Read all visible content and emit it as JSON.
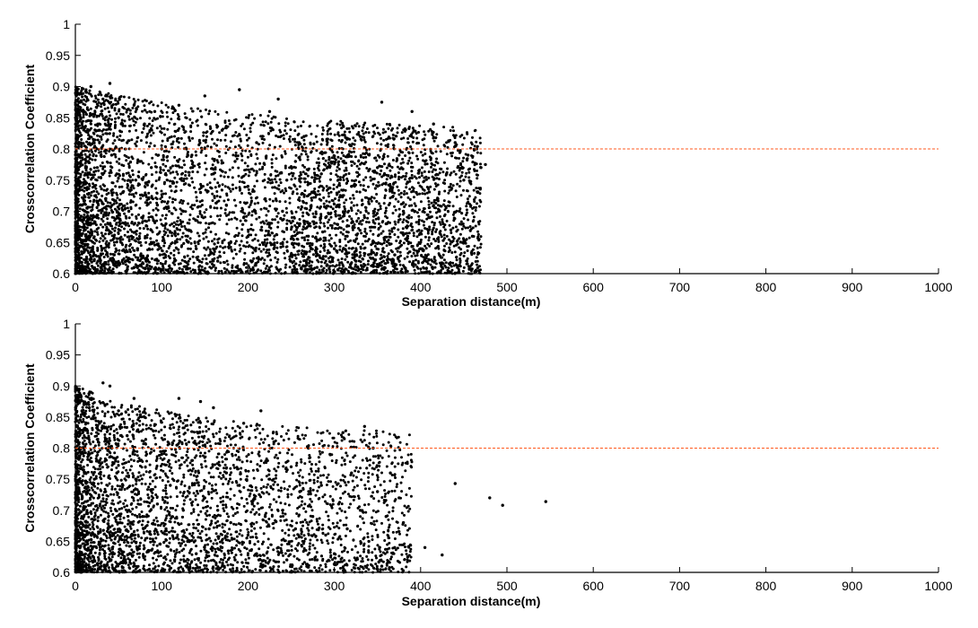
{
  "chart_data": [
    {
      "type": "scatter",
      "xlabel": "Separation distance(m)",
      "ylabel": "Crosscorrelation Coefficient",
      "xlim": [
        0,
        1000
      ],
      "ylim": [
        0.6,
        1
      ],
      "xticks": [
        "0",
        "100",
        "200",
        "300",
        "400",
        "500",
        "600",
        "700",
        "800",
        "900",
        "1000"
      ],
      "yticks": [
        "0.6",
        "0.65",
        "0.7",
        "0.75",
        "0.8",
        "0.85",
        "0.9",
        "0.95",
        "1"
      ],
      "threshold": 0.8,
      "threshold_color": "#ff5a1f",
      "marker_color": "#000000",
      "grid": false,
      "points": [
        [
          5,
          0.62
        ],
        [
          8,
          0.71
        ],
        [
          10,
          0.86
        ],
        [
          12,
          0.66
        ],
        [
          15,
          0.78
        ],
        [
          18,
          0.9
        ],
        [
          20,
          0.64
        ],
        [
          22,
          0.74
        ],
        [
          25,
          0.69
        ],
        [
          28,
          0.83
        ],
        [
          30,
          0.61
        ],
        [
          32,
          0.88
        ],
        [
          35,
          0.72
        ],
        [
          38,
          0.67
        ],
        [
          40,
          0.905
        ],
        [
          42,
          0.79
        ],
        [
          45,
          0.63
        ],
        [
          48,
          0.76
        ],
        [
          50,
          0.85
        ],
        [
          52,
          0.68
        ],
        [
          55,
          0.73
        ],
        [
          58,
          0.62
        ],
        [
          60,
          0.81
        ],
        [
          62,
          0.7
        ],
        [
          65,
          0.66
        ],
        [
          68,
          0.87
        ],
        [
          70,
          0.75
        ],
        [
          72,
          0.64
        ],
        [
          75,
          0.78
        ],
        [
          78,
          0.69
        ],
        [
          80,
          0.84
        ],
        [
          82,
          0.62
        ],
        [
          85,
          0.72
        ],
        [
          88,
          0.77
        ],
        [
          90,
          0.65
        ],
        [
          92,
          0.86
        ],
        [
          95,
          0.71
        ],
        [
          98,
          0.63
        ],
        [
          100,
          0.8
        ],
        [
          105,
          0.68
        ],
        [
          110,
          0.74
        ],
        [
          115,
          0.62
        ],
        [
          120,
          0.87
        ],
        [
          125,
          0.7
        ],
        [
          130,
          0.66
        ],
        [
          135,
          0.79
        ],
        [
          140,
          0.64
        ],
        [
          145,
          0.73
        ],
        [
          150,
          0.885
        ],
        [
          155,
          0.68
        ],
        [
          160,
          0.76
        ],
        [
          165,
          0.62
        ],
        [
          170,
          0.83
        ],
        [
          175,
          0.71
        ],
        [
          180,
          0.65
        ],
        [
          185,
          0.78
        ],
        [
          190,
          0.895
        ],
        [
          195,
          0.69
        ],
        [
          200,
          0.74
        ],
        [
          205,
          0.62
        ],
        [
          210,
          0.81
        ],
        [
          215,
          0.67
        ],
        [
          220,
          0.72
        ],
        [
          225,
          0.86
        ],
        [
          230,
          0.64
        ],
        [
          235,
          0.88
        ],
        [
          240,
          0.7
        ],
        [
          245,
          0.75
        ],
        [
          250,
          0.63
        ],
        [
          255,
          0.78
        ],
        [
          260,
          0.68
        ],
        [
          265,
          0.82
        ],
        [
          270,
          0.66
        ],
        [
          275,
          0.73
        ],
        [
          280,
          0.61
        ],
        [
          285,
          0.76
        ],
        [
          290,
          0.69
        ],
        [
          295,
          0.8
        ],
        [
          300,
          0.64
        ],
        [
          305,
          0.71
        ],
        [
          310,
          0.78
        ],
        [
          315,
          0.66
        ],
        [
          320,
          0.74
        ],
        [
          325,
          0.62
        ],
        [
          330,
          0.82
        ],
        [
          335,
          0.69
        ],
        [
          340,
          0.72
        ],
        [
          345,
          0.65
        ],
        [
          350,
          0.77
        ],
        [
          355,
          0.875
        ],
        [
          360,
          0.68
        ],
        [
          365,
          0.74
        ],
        [
          370,
          0.63
        ],
        [
          375,
          0.79
        ],
        [
          380,
          0.7
        ],
        [
          385,
          0.66
        ],
        [
          390,
          0.86
        ],
        [
          395,
          0.73
        ],
        [
          400,
          0.64
        ],
        [
          405,
          0.78
        ],
        [
          410,
          0.69
        ],
        [
          415,
          0.84
        ],
        [
          420,
          0.72
        ],
        [
          425,
          0.61
        ],
        [
          430,
          0.76
        ],
        [
          435,
          0.67
        ],
        [
          440,
          0.81
        ],
        [
          445,
          0.7
        ],
        [
          450,
          0.75
        ],
        [
          455,
          0.79
        ],
        [
          460,
          0.66
        ],
        [
          465,
          0.8
        ],
        [
          470,
          0.77
        ],
        [
          475,
          0.775
        ]
      ]
    },
    {
      "type": "scatter",
      "xlabel": "Separation distance(m)",
      "ylabel": "Crosscorrelation Coefficient",
      "xlim": [
        0,
        1000
      ],
      "ylim": [
        0.6,
        1
      ],
      "xticks": [
        "0",
        "100",
        "200",
        "300",
        "400",
        "500",
        "600",
        "700",
        "800",
        "900",
        "1000"
      ],
      "yticks": [
        "0.6",
        "0.65",
        "0.7",
        "0.75",
        "0.8",
        "0.85",
        "0.9",
        "0.95",
        "1"
      ],
      "threshold": 0.8,
      "threshold_color": "#ff5a1f",
      "marker_color": "#000000",
      "grid": false,
      "points": [
        [
          5,
          0.63
        ],
        [
          8,
          0.72
        ],
        [
          10,
          0.87
        ],
        [
          12,
          0.66
        ],
        [
          15,
          0.79
        ],
        [
          18,
          0.89
        ],
        [
          20,
          0.64
        ],
        [
          22,
          0.75
        ],
        [
          25,
          0.7
        ],
        [
          28,
          0.84
        ],
        [
          30,
          0.61
        ],
        [
          32,
          0.905
        ],
        [
          35,
          0.73
        ],
        [
          38,
          0.67
        ],
        [
          40,
          0.9
        ],
        [
          42,
          0.8
        ],
        [
          45,
          0.63
        ],
        [
          48,
          0.76
        ],
        [
          50,
          0.86
        ],
        [
          52,
          0.68
        ],
        [
          55,
          0.74
        ],
        [
          58,
          0.62
        ],
        [
          60,
          0.82
        ],
        [
          62,
          0.7
        ],
        [
          65,
          0.66
        ],
        [
          68,
          0.88
        ],
        [
          70,
          0.75
        ],
        [
          72,
          0.64
        ],
        [
          75,
          0.78
        ],
        [
          78,
          0.69
        ],
        [
          80,
          0.85
        ],
        [
          85,
          0.72
        ],
        [
          90,
          0.65
        ],
        [
          95,
          0.71
        ],
        [
          100,
          0.79
        ],
        [
          105,
          0.67
        ],
        [
          110,
          0.74
        ],
        [
          115,
          0.62
        ],
        [
          120,
          0.88
        ],
        [
          125,
          0.7
        ],
        [
          130,
          0.65
        ],
        [
          135,
          0.78
        ],
        [
          140,
          0.63
        ],
        [
          145,
          0.875
        ],
        [
          150,
          0.72
        ],
        [
          155,
          0.67
        ],
        [
          160,
          0.865
        ],
        [
          165,
          0.7
        ],
        [
          170,
          0.64
        ],
        [
          175,
          0.76
        ],
        [
          180,
          0.68
        ],
        [
          185,
          0.62
        ],
        [
          190,
          0.74
        ],
        [
          195,
          0.84
        ],
        [
          200,
          0.66
        ],
        [
          205,
          0.71
        ],
        [
          210,
          0.63
        ],
        [
          215,
          0.86
        ],
        [
          220,
          0.69
        ],
        [
          225,
          0.75
        ],
        [
          230,
          0.81
        ],
        [
          235,
          0.64
        ],
        [
          240,
          0.7
        ],
        [
          245,
          0.62
        ],
        [
          250,
          0.77
        ],
        [
          255,
          0.67
        ],
        [
          260,
          0.73
        ],
        [
          265,
          0.65
        ],
        [
          270,
          0.8
        ],
        [
          275,
          0.69
        ],
        [
          280,
          0.62
        ],
        [
          285,
          0.74
        ],
        [
          290,
          0.66
        ],
        [
          295,
          0.79
        ],
        [
          300,
          0.63
        ],
        [
          305,
          0.71
        ],
        [
          310,
          0.825
        ],
        [
          315,
          0.67
        ],
        [
          320,
          0.76
        ],
        [
          325,
          0.62
        ],
        [
          330,
          0.7
        ],
        [
          335,
          0.835
        ],
        [
          340,
          0.65
        ],
        [
          345,
          0.8
        ],
        [
          350,
          0.73
        ],
        [
          355,
          0.61
        ],
        [
          360,
          0.69
        ],
        [
          365,
          0.76
        ],
        [
          370,
          0.64
        ],
        [
          375,
          0.72
        ],
        [
          380,
          0.68
        ],
        [
          385,
          0.625
        ],
        [
          405,
          0.64
        ],
        [
          425,
          0.628
        ],
        [
          440,
          0.743
        ],
        [
          480,
          0.72
        ],
        [
          495,
          0.708
        ],
        [
          545,
          0.714
        ]
      ]
    }
  ]
}
